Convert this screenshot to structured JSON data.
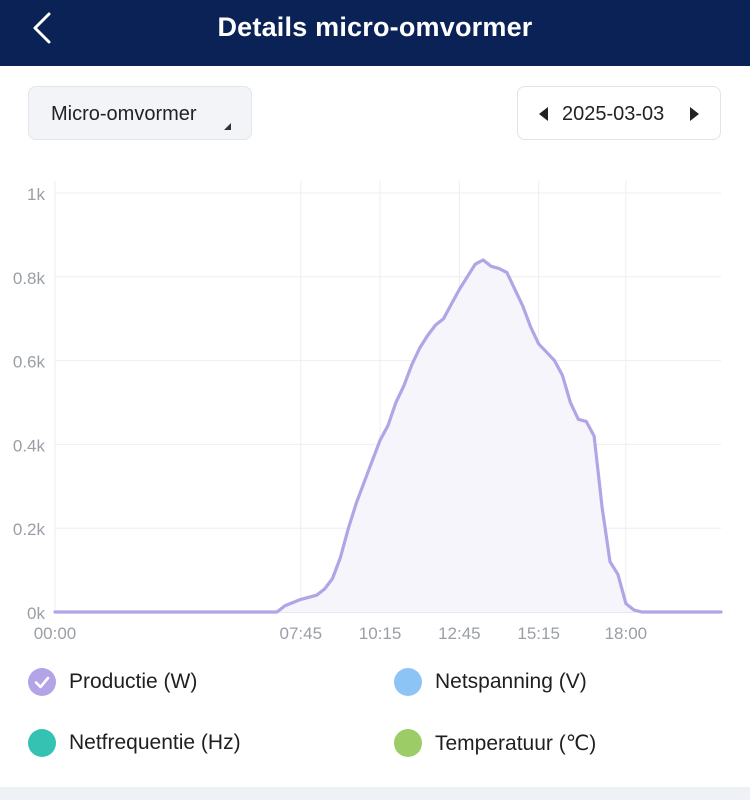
{
  "header": {
    "title": "Details micro-omvormer",
    "back_icon": "chevron-left-icon"
  },
  "controls": {
    "device_label": "Micro-omvormer",
    "date": "2025-03-03"
  },
  "colors": {
    "header_bg": "#0b2256",
    "production": "#b2a4e6",
    "voltage": "#8cc4f5",
    "frequency": "#36c2b3",
    "temperature": "#9ccc65"
  },
  "legend": [
    {
      "label": "Productie (W)",
      "color": "#b2a4e6",
      "checked": true
    },
    {
      "label": "Netspanning (V)",
      "color": "#8cc4f5",
      "checked": false
    },
    {
      "label": "Netfrequentie (Hz)",
      "color": "#36c2b3",
      "checked": false
    },
    {
      "label": "Temperatuur (℃)",
      "color": "#9ccc65",
      "checked": false
    }
  ],
  "chart_data": {
    "type": "area",
    "title": "",
    "xlabel": "",
    "ylabel": "",
    "x_ticks": [
      "00:00",
      "07:45",
      "10:15",
      "12:45",
      "15:15",
      "18:00"
    ],
    "y_ticks": [
      "0k",
      "0.2k",
      "0.4k",
      "0.6k",
      "0.8k",
      "1k"
    ],
    "ylim": [
      0,
      1000
    ],
    "grid": true,
    "series": [
      {
        "name": "Productie (W)",
        "color": "#b2a4e6",
        "x": [
          "00:00",
          "07:00",
          "07:15",
          "07:45",
          "08:15",
          "08:30",
          "08:45",
          "09:00",
          "09:15",
          "09:30",
          "09:45",
          "10:00",
          "10:15",
          "10:30",
          "10:45",
          "11:00",
          "11:15",
          "11:30",
          "11:45",
          "12:00",
          "12:15",
          "12:30",
          "12:45",
          "13:00",
          "13:15",
          "13:30",
          "13:45",
          "14:00",
          "14:15",
          "14:30",
          "14:45",
          "15:00",
          "15:15",
          "15:30",
          "15:45",
          "16:00",
          "16:15",
          "16:30",
          "16:45",
          "17:00",
          "17:15",
          "17:30",
          "17:45",
          "18:00",
          "18:15",
          "18:30",
          "19:00",
          "20:30",
          "21:00"
        ],
        "values": [
          0,
          0,
          15,
          30,
          40,
          55,
          80,
          130,
          200,
          260,
          310,
          360,
          410,
          445,
          500,
          540,
          590,
          630,
          660,
          685,
          700,
          735,
          770,
          800,
          830,
          840,
          825,
          820,
          810,
          770,
          730,
          680,
          640,
          620,
          600,
          565,
          500,
          460,
          455,
          420,
          250,
          120,
          90,
          20,
          5,
          0,
          0,
          0,
          0
        ]
      }
    ]
  }
}
